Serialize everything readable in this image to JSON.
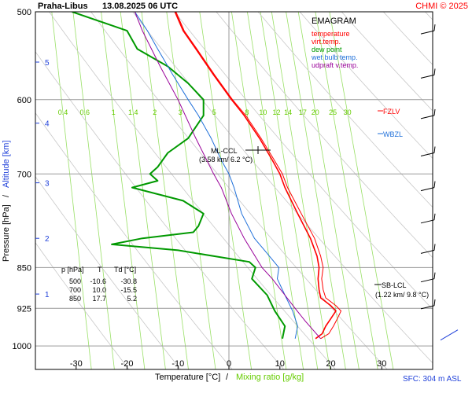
{
  "header": {
    "station_title": "Praha-Libus",
    "datetime": "13.08.2025 06 UTC",
    "credit": "CHMI © 2025"
  },
  "footer": {
    "sfc": "SFC: 304 m ASL"
  },
  "chart_data": {
    "type": "line",
    "title": "EMAGRAM",
    "xlabel": "Temperature [°C]",
    "xlabel_sep": "/",
    "xlabel2": "Mixing ratio [g/kg]",
    "ylabel": "Pressure [hPa]",
    "ylabel_sep": "/",
    "ylabel2": "Altitude [km]",
    "xlim": [
      -38,
      40
    ],
    "ylim_hpa": [
      1050,
      500
    ],
    "pressure_ticks": [
      500,
      600,
      700,
      850,
      925,
      1000
    ],
    "temp_ticks": [
      -30,
      -20,
      -10,
      0,
      10,
      20,
      30
    ],
    "altitude_ticks": [
      {
        "label": "5",
        "p": 555
      },
      {
        "label": "4",
        "p": 630
      },
      {
        "label": "3",
        "p": 713
      },
      {
        "label": "2",
        "p": 800
      },
      {
        "label": "1",
        "p": 898
      }
    ],
    "mixing_ratio_labels": [
      "0.4",
      "0.6",
      "1",
      "1.4",
      "2",
      "3",
      "5",
      "8",
      "10",
      "12",
      "14",
      "17",
      "20",
      "25",
      "30"
    ],
    "legend": [
      {
        "name": "temperature",
        "color": "#ff0000"
      },
      {
        "name": "virt.temp.",
        "color": "#ff0000"
      },
      {
        "name": "dew point",
        "color": "#009900"
      },
      {
        "name": "wet bulb temp.",
        "color": "#1e6fd9"
      },
      {
        "name": "udpraft v.temp.",
        "color": "#990099"
      }
    ],
    "annotations": {
      "fzlv": "FZLV",
      "wbzl": "WBZL",
      "ml_ccl": "ML-CCL",
      "ml_ccl_detail": "(3.58 km/ 6.2 °C)",
      "sb_lcl": "SB-LCL",
      "sb_lcl_detail": "(1.22 km/ 9.8 °C)"
    },
    "table": {
      "headers": [
        "p [hPa]",
        "T",
        "Td [°C]"
      ],
      "rows": [
        [
          "500",
          "-10.6",
          "-30.8"
        ],
        [
          "700",
          "10.0",
          "-15.5"
        ],
        [
          "850",
          "17.7",
          "5.2"
        ]
      ]
    },
    "series": [
      {
        "name": "temperature",
        "color": "#ff0000",
        "points": [
          [
            985,
            17.0
          ],
          [
            975,
            18.3
          ],
          [
            960,
            19.0
          ],
          [
            945,
            20.0
          ],
          [
            930,
            21.0
          ],
          [
            920,
            20.0
          ],
          [
            905,
            18.0
          ],
          [
            890,
            17.7
          ],
          [
            870,
            17.5
          ],
          [
            850,
            17.7
          ],
          [
            830,
            17.3
          ],
          [
            800,
            16.0
          ],
          [
            760,
            13.5
          ],
          [
            720,
            11.0
          ],
          [
            700,
            10.0
          ],
          [
            680,
            8.5
          ],
          [
            650,
            6.0
          ],
          [
            620,
            3.0
          ],
          [
            600,
            0.5
          ],
          [
            570,
            -3.0
          ],
          [
            540,
            -6.5
          ],
          [
            520,
            -9.0
          ],
          [
            500,
            -10.6
          ]
        ]
      },
      {
        "name": "virt.temp.",
        "color": "#ff0000",
        "points": [
          [
            985,
            18.0
          ],
          [
            975,
            19.6
          ],
          [
            960,
            20.5
          ],
          [
            945,
            21.3
          ],
          [
            930,
            22.0
          ],
          [
            920,
            21.0
          ],
          [
            905,
            19.0
          ],
          [
            890,
            18.5
          ],
          [
            870,
            18.2
          ],
          [
            850,
            18.5
          ],
          [
            830,
            18.0
          ],
          [
            800,
            16.8
          ],
          [
            760,
            14.2
          ],
          [
            720,
            11.5
          ],
          [
            700,
            10.5
          ],
          [
            680,
            8.9
          ],
          [
            650,
            6.3
          ],
          [
            620,
            3.3
          ],
          [
            600,
            0.7
          ],
          [
            570,
            -2.8
          ],
          [
            540,
            -6.3
          ],
          [
            520,
            -8.8
          ],
          [
            500,
            -10.4
          ]
        ]
      },
      {
        "name": "dew point",
        "color": "#009900",
        "points": [
          [
            985,
            10.5
          ],
          [
            960,
            11.0
          ],
          [
            930,
            9.0
          ],
          [
            900,
            7.5
          ],
          [
            870,
            4.5
          ],
          [
            850,
            5.2
          ],
          [
            840,
            4.0
          ],
          [
            820,
            -10.0
          ],
          [
            810,
            -23.0
          ],
          [
            800,
            -17.0
          ],
          [
            790,
            -7.0
          ],
          [
            780,
            -6.0
          ],
          [
            760,
            -5.0
          ],
          [
            740,
            -9.0
          ],
          [
            720,
            -19.0
          ],
          [
            710,
            -14.0
          ],
          [
            700,
            -15.5
          ],
          [
            690,
            -14.0
          ],
          [
            670,
            -12.0
          ],
          [
            650,
            -8.0
          ],
          [
            620,
            -5.0
          ],
          [
            600,
            -5.0
          ],
          [
            580,
            -8.0
          ],
          [
            560,
            -12.0
          ],
          [
            540,
            -18.0
          ],
          [
            520,
            -20.0
          ],
          [
            500,
            -30.8
          ]
        ]
      },
      {
        "name": "wet bulb temp.",
        "color": "#1e6fd9",
        "points": [
          [
            985,
            13.0
          ],
          [
            960,
            13.5
          ],
          [
            930,
            12.5
          ],
          [
            900,
            11.0
          ],
          [
            870,
            9.5
          ],
          [
            850,
            9.8
          ],
          [
            820,
            7.0
          ],
          [
            800,
            5.0
          ],
          [
            760,
            2.5
          ],
          [
            720,
            1.0
          ],
          [
            700,
            0.0
          ],
          [
            680,
            -1.5
          ],
          [
            650,
            -3.5
          ],
          [
            620,
            -6.0
          ],
          [
            600,
            -8.0
          ],
          [
            570,
            -11.0
          ],
          [
            540,
            -14.0
          ],
          [
            520,
            -16.0
          ],
          [
            500,
            -18.5
          ]
        ]
      },
      {
        "name": "udpraft v.temp.",
        "color": "#990099",
        "points": [
          [
            985,
            18.0
          ],
          [
            950,
            15.0
          ],
          [
            925,
            13.0
          ],
          [
            900,
            11.0
          ],
          [
            870,
            8.5
          ],
          [
            850,
            6.5
          ],
          [
            800,
            3.0
          ],
          [
            760,
            0.5
          ],
          [
            720,
            -1.5
          ],
          [
            700,
            -3.0
          ],
          [
            650,
            -6.5
          ],
          [
            600,
            -10.0
          ],
          [
            560,
            -13.5
          ],
          [
            520,
            -17.0
          ],
          [
            500,
            -18.5
          ]
        ]
      }
    ]
  }
}
